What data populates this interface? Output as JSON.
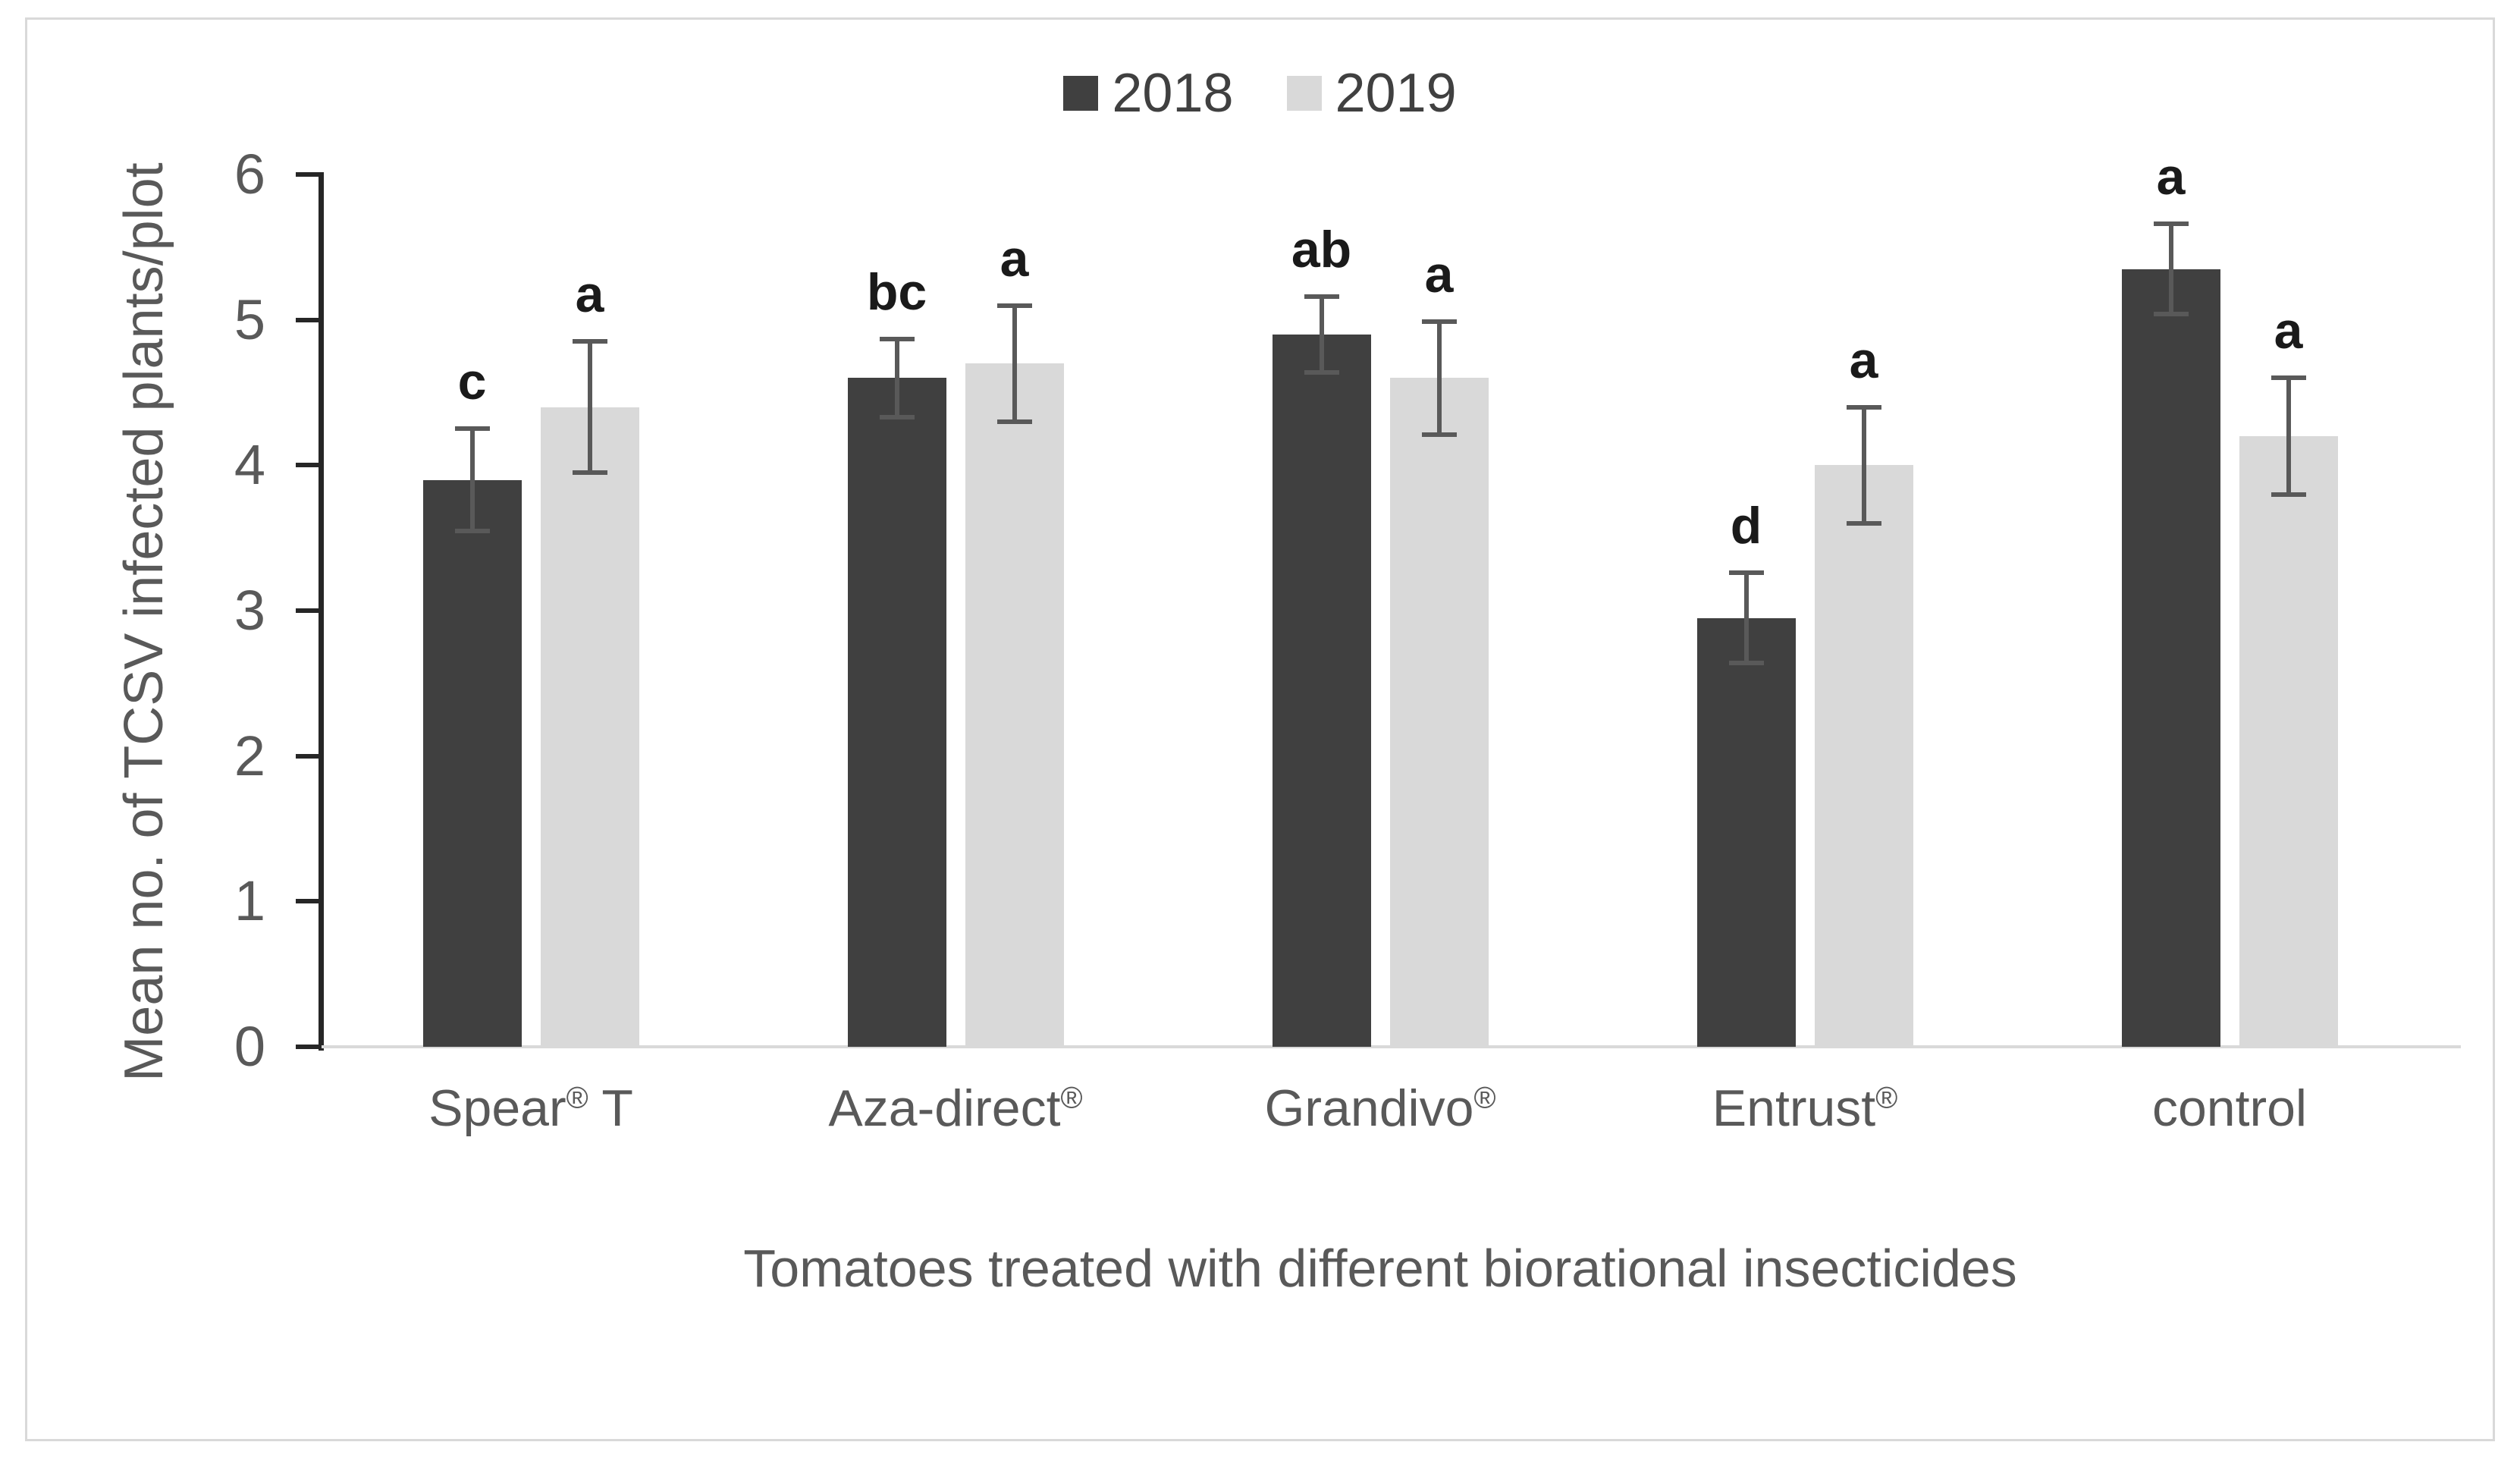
{
  "figure": {
    "background": "#ffffff",
    "border_color": "#d9d9d9"
  },
  "chart_data": {
    "type": "bar",
    "title": "",
    "xlabel": "Tomatoes treated with different biorational insecticides",
    "ylabel": "Mean no. of TCSV infected plants/plot",
    "ylim": [
      0,
      6
    ],
    "yticks": [
      0,
      1,
      2,
      3,
      4,
      5,
      6
    ],
    "grid": false,
    "legend_position": "top-center",
    "categories": [
      "Spear® T",
      "Aza-direct®",
      "Grandivo®",
      "Entrust®",
      "control"
    ],
    "series": [
      {
        "name": "2018",
        "color": "#404040",
        "values": [
          3.9,
          4.6,
          4.9,
          2.95,
          5.35
        ],
        "errors": [
          0.35,
          0.27,
          0.26,
          0.31,
          0.31
        ],
        "letters": [
          "c",
          "bc",
          "ab",
          "d",
          "a"
        ]
      },
      {
        "name": "2019",
        "color": "#d9d9d9",
        "values": [
          4.4,
          4.7,
          4.6,
          4.0,
          4.2
        ],
        "errors": [
          0.45,
          0.4,
          0.39,
          0.4,
          0.4
        ],
        "letters": [
          "a",
          "a",
          "a",
          "a",
          "a"
        ]
      }
    ],
    "colors": {
      "error_bar": "#595959",
      "annotation": "#1a1a1a",
      "axis_text": "#595959",
      "axis_line": "#262626",
      "baseline": "#d9d9d9"
    }
  }
}
